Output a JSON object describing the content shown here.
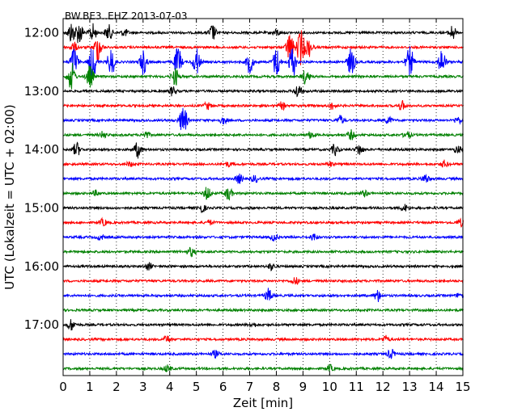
{
  "chart_data": {
    "type": "line",
    "title": "BW.BE3..EHZ 2013-07-03",
    "xlabel": "Zeit  [min]",
    "ylabel": "UTC (Lokalzeit = UTC + 02:00)",
    "xlim": [
      0,
      15
    ],
    "x_ticks": [
      0,
      1,
      2,
      3,
      4,
      5,
      6,
      7,
      8,
      9,
      10,
      11,
      12,
      13,
      14,
      15
    ],
    "y_tick_labels": [
      "12:00",
      "13:00",
      "14:00",
      "15:00",
      "16:00",
      "17:00"
    ],
    "grid": "vertical dotted lines at each minute",
    "row_interval_min": 15,
    "row_colors": [
      "#000000",
      "#ff0000",
      "#0000ff",
      "#008000"
    ],
    "rows": [
      {
        "start": "12:00",
        "color": "#000000",
        "events": [
          [
            0.3,
            0.9
          ],
          [
            0.6,
            1.0
          ],
          [
            1.1,
            0.8
          ],
          [
            1.7,
            0.7
          ],
          [
            2.3,
            0.3
          ],
          [
            5.6,
            0.7
          ],
          [
            8.0,
            0.3
          ],
          [
            14.6,
            0.6
          ]
        ]
      },
      {
        "start": "12:15",
        "color": "#ff0000",
        "events": [
          [
            0.4,
            0.4
          ],
          [
            1.3,
            1.2
          ],
          [
            8.5,
            1.3
          ],
          [
            8.9,
            1.6
          ],
          [
            9.2,
            0.8
          ]
        ]
      },
      {
        "start": "12:30",
        "color": "#0000ff",
        "events": [
          [
            0.4,
            1.4
          ],
          [
            1.1,
            1.5
          ],
          [
            1.8,
            1.2
          ],
          [
            3.0,
            1.1
          ],
          [
            4.3,
            1.3
          ],
          [
            5.0,
            1.2
          ],
          [
            7.0,
            1.0
          ],
          [
            8.0,
            1.3
          ],
          [
            8.6,
            1.4
          ],
          [
            10.8,
            1.2
          ],
          [
            13.0,
            1.3
          ],
          [
            14.2,
            1.1
          ]
        ]
      },
      {
        "start": "12:45",
        "color": "#008000",
        "events": [
          [
            0.3,
            1.2
          ],
          [
            1.0,
            1.0
          ],
          [
            4.2,
            0.8
          ],
          [
            9.1,
            0.7
          ]
        ]
      },
      {
        "start": "13:00",
        "color": "#000000",
        "events": [
          [
            4.1,
            0.4
          ],
          [
            8.8,
            0.6
          ]
        ]
      },
      {
        "start": "13:15",
        "color": "#ff0000",
        "events": [
          [
            5.4,
            0.3
          ],
          [
            8.2,
            0.3
          ],
          [
            10.1,
            0.3
          ],
          [
            12.7,
            0.4
          ]
        ]
      },
      {
        "start": "13:30",
        "color": "#0000ff",
        "events": [
          [
            4.5,
            1.4
          ],
          [
            6.0,
            0.3
          ],
          [
            10.4,
            0.4
          ],
          [
            12.2,
            0.3
          ],
          [
            14.8,
            0.3
          ]
        ]
      },
      {
        "start": "13:45",
        "color": "#008000",
        "events": [
          [
            1.5,
            0.3
          ],
          [
            3.1,
            0.3
          ],
          [
            9.3,
            0.3
          ],
          [
            10.8,
            0.4
          ],
          [
            12.9,
            0.3
          ]
        ]
      },
      {
        "start": "14:00",
        "color": "#000000",
        "events": [
          [
            0.5,
            0.6
          ],
          [
            2.8,
            0.7
          ],
          [
            10.2,
            0.5
          ],
          [
            11.1,
            0.5
          ],
          [
            14.8,
            0.3
          ]
        ]
      },
      {
        "start": "14:15",
        "color": "#ff0000",
        "events": [
          [
            2.5,
            0.2
          ],
          [
            6.2,
            0.2
          ],
          [
            10.0,
            0.2
          ],
          [
            14.3,
            0.3
          ]
        ]
      },
      {
        "start": "14:30",
        "color": "#0000ff",
        "events": [
          [
            6.6,
            0.4
          ],
          [
            7.2,
            0.3
          ],
          [
            13.6,
            0.4
          ]
        ]
      },
      {
        "start": "14:45",
        "color": "#008000",
        "events": [
          [
            1.2,
            0.2
          ],
          [
            5.4,
            0.6
          ],
          [
            6.2,
            0.6
          ],
          [
            11.3,
            0.3
          ]
        ]
      },
      {
        "start": "15:00",
        "color": "#000000",
        "events": [
          [
            5.2,
            0.4
          ],
          [
            12.8,
            0.3
          ]
        ]
      },
      {
        "start": "15:15",
        "color": "#ff0000",
        "events": [
          [
            1.5,
            0.3
          ],
          [
            5.5,
            0.2
          ],
          [
            14.9,
            0.3
          ]
        ]
      },
      {
        "start": "15:30",
        "color": "#0000ff",
        "events": [
          [
            1.4,
            0.2
          ],
          [
            7.9,
            0.3
          ],
          [
            9.4,
            0.3
          ]
        ]
      },
      {
        "start": "15:45",
        "color": "#008000",
        "events": [
          [
            4.8,
            0.4
          ]
        ]
      },
      {
        "start": "16:00",
        "color": "#000000",
        "events": [
          [
            3.2,
            0.3
          ],
          [
            7.8,
            0.3
          ]
        ]
      },
      {
        "start": "16:15",
        "color": "#ff0000",
        "events": [
          [
            8.7,
            0.3
          ]
        ]
      },
      {
        "start": "16:30",
        "color": "#0000ff",
        "events": [
          [
            7.7,
            0.6
          ],
          [
            11.8,
            0.5
          ],
          [
            14.9,
            0.3
          ]
        ]
      },
      {
        "start": "16:45",
        "color": "#008000",
        "events": []
      },
      {
        "start": "17:00",
        "color": "#000000",
        "events": [
          [
            0.3,
            0.5
          ],
          [
            7.1,
            0.2
          ]
        ]
      },
      {
        "start": "17:15",
        "color": "#ff0000",
        "events": [
          [
            3.9,
            0.3
          ],
          [
            12.1,
            0.3
          ]
        ]
      },
      {
        "start": "17:30",
        "color": "#0000ff",
        "events": [
          [
            5.7,
            0.3
          ],
          [
            12.3,
            0.4
          ]
        ]
      },
      {
        "start": "17:45",
        "color": "#008000",
        "events": [
          [
            3.9,
            0.3
          ],
          [
            10.0,
            0.3
          ]
        ]
      }
    ]
  }
}
